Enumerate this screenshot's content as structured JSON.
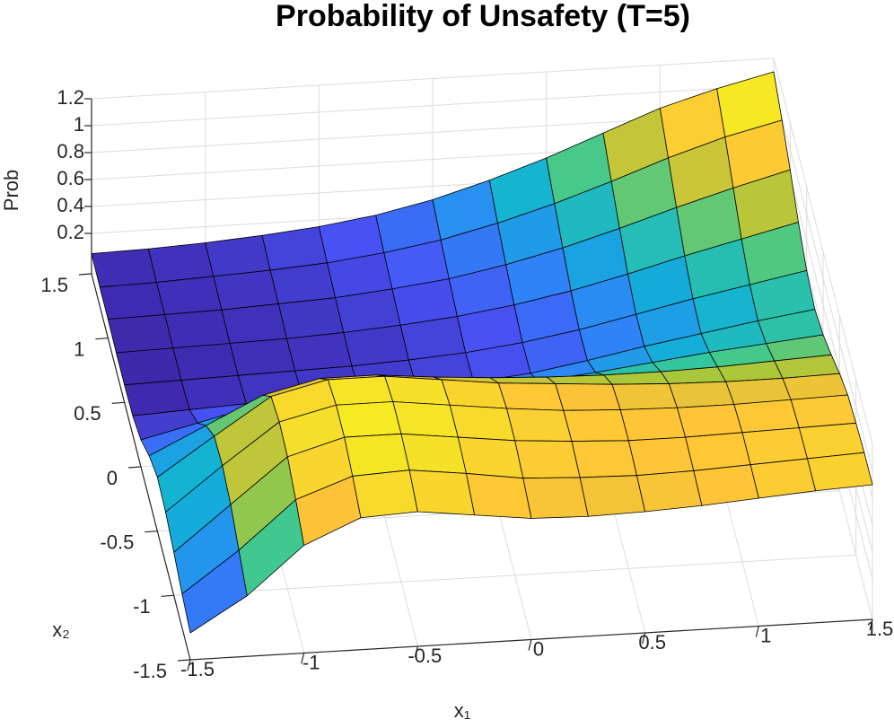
{
  "chart_data": {
    "type": "surface",
    "title": "Probability of Unsafety (T=5)",
    "xlabel": "x₁",
    "ylabel": "x₂",
    "zlabel": "Prob",
    "xlim": [
      -1.5,
      1.5
    ],
    "ylim": [
      -1.5,
      1.5
    ],
    "zlim": [
      -0.1,
      1.2
    ],
    "xticks": [
      -1.5,
      -1,
      -0.5,
      0,
      0.5,
      1,
      1.5
    ],
    "yticks": [
      -1.5,
      -1,
      -0.5,
      0,
      0.5,
      1,
      1.5
    ],
    "zticks": [
      0.2,
      0.4,
      0.6,
      0.8,
      1,
      1.2
    ],
    "grid": true,
    "colormap": "parula",
    "x": [
      -1.5,
      -1.25,
      -1,
      -0.75,
      -0.5,
      -0.25,
      0,
      0.25,
      0.5,
      0.75,
      1,
      1.25,
      1.5
    ],
    "y": [
      -1.5,
      -1.25,
      -1,
      -0.75,
      -0.5,
      -0.25,
      0,
      0.25,
      0.5,
      0.75,
      1,
      1.25,
      1.5
    ],
    "z": [
      [
        0.1,
        0.35,
        0.7,
        0.88,
        0.9,
        0.85,
        0.8,
        0.79,
        0.8,
        0.82,
        0.85,
        0.88,
        0.9
      ],
      [
        0.15,
        0.45,
        0.8,
        0.95,
        0.97,
        0.92,
        0.86,
        0.84,
        0.83,
        0.84,
        0.86,
        0.88,
        0.9
      ],
      [
        0.22,
        0.55,
        0.88,
        1.0,
        1.0,
        0.95,
        0.9,
        0.87,
        0.85,
        0.85,
        0.86,
        0.87,
        0.88
      ],
      [
        0.28,
        0.6,
        0.9,
        1.0,
        1.0,
        0.95,
        0.9,
        0.86,
        0.84,
        0.83,
        0.83,
        0.84,
        0.85
      ],
      [
        0.3,
        0.58,
        0.85,
        0.95,
        0.95,
        0.9,
        0.85,
        0.82,
        0.79,
        0.77,
        0.76,
        0.76,
        0.77
      ],
      [
        0.22,
        0.42,
        0.62,
        0.72,
        0.72,
        0.68,
        0.65,
        0.63,
        0.62,
        0.62,
        0.63,
        0.65,
        0.67
      ],
      [
        0.1,
        0.2,
        0.3,
        0.35,
        0.36,
        0.35,
        0.35,
        0.36,
        0.4,
        0.45,
        0.5,
        0.54,
        0.58
      ],
      [
        0.04,
        0.06,
        0.08,
        0.1,
        0.11,
        0.12,
        0.14,
        0.18,
        0.25,
        0.33,
        0.4,
        0.47,
        0.53
      ],
      [
        0.03,
        0.04,
        0.05,
        0.06,
        0.07,
        0.09,
        0.12,
        0.17,
        0.24,
        0.33,
        0.42,
        0.5,
        0.58
      ],
      [
        0.03,
        0.04,
        0.05,
        0.06,
        0.08,
        0.11,
        0.15,
        0.21,
        0.29,
        0.39,
        0.5,
        0.6,
        0.7
      ],
      [
        0.04,
        0.05,
        0.06,
        0.08,
        0.1,
        0.14,
        0.19,
        0.27,
        0.37,
        0.49,
        0.62,
        0.74,
        0.85
      ],
      [
        0.04,
        0.05,
        0.07,
        0.09,
        0.12,
        0.17,
        0.24,
        0.34,
        0.46,
        0.6,
        0.75,
        0.88,
        0.98
      ],
      [
        0.05,
        0.06,
        0.08,
        0.11,
        0.15,
        0.21,
        0.3,
        0.42,
        0.56,
        0.72,
        0.88,
        1.0,
        1.1
      ]
    ]
  }
}
